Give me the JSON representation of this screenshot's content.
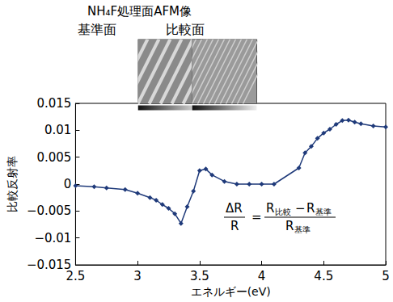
{
  "chart_data": {
    "type": "line",
    "title": "NH₄F処理面AFM像",
    "annotations": {
      "image_labels": [
        "基準面",
        "比較面"
      ],
      "formula": {
        "lhs_numerator": "ΔR",
        "lhs_denominator": "R",
        "equals": "=",
        "numerator": [
          [
            "R",
            "比較"
          ],
          "−",
          [
            "R",
            "基準"
          ]
        ],
        "denominator": [
          "R",
          "基準"
        ]
      }
    },
    "x_label": "エネルギー(eV)",
    "y_label": "比較反射率",
    "x": [
      2.5,
      2.65,
      2.75,
      2.9,
      3.0,
      3.1,
      3.15,
      3.2,
      3.25,
      3.3,
      3.35,
      3.4,
      3.45,
      3.5,
      3.55,
      3.6,
      3.7,
      3.8,
      3.9,
      4.0,
      4.1,
      4.3,
      4.35,
      4.4,
      4.45,
      4.5,
      4.55,
      4.6,
      4.65,
      4.7,
      4.75,
      4.8,
      4.9,
      5.0
    ],
    "values": [
      -0.0003,
      -0.0005,
      -0.0007,
      -0.001,
      -0.0017,
      -0.0025,
      -0.003,
      -0.0038,
      -0.0045,
      -0.0055,
      -0.0073,
      -0.0042,
      -0.0013,
      0.0025,
      0.0028,
      0.0017,
      0.0005,
      0.0,
      0.0,
      0.0,
      0.0,
      0.003,
      0.0058,
      0.007,
      0.0085,
      0.0095,
      0.0102,
      0.0111,
      0.0118,
      0.0119,
      0.0115,
      0.0112,
      0.0108,
      0.0106
    ],
    "color": "#1f3a7a",
    "marker": "diamond",
    "xlim": [
      2.5,
      5
    ],
    "xticks": [
      2.5,
      3,
      3.5,
      4,
      4.5,
      5
    ],
    "ylim": [
      -0.015,
      0.015
    ],
    "yticks": [
      {
        "value": -0.015,
        "label": "−0.015"
      },
      {
        "value": -0.01,
        "label": "−0.01"
      },
      {
        "value": -0.005,
        "label": "−0.005"
      },
      0,
      0.005,
      0.01,
      0.015
    ],
    "grid": false
  }
}
